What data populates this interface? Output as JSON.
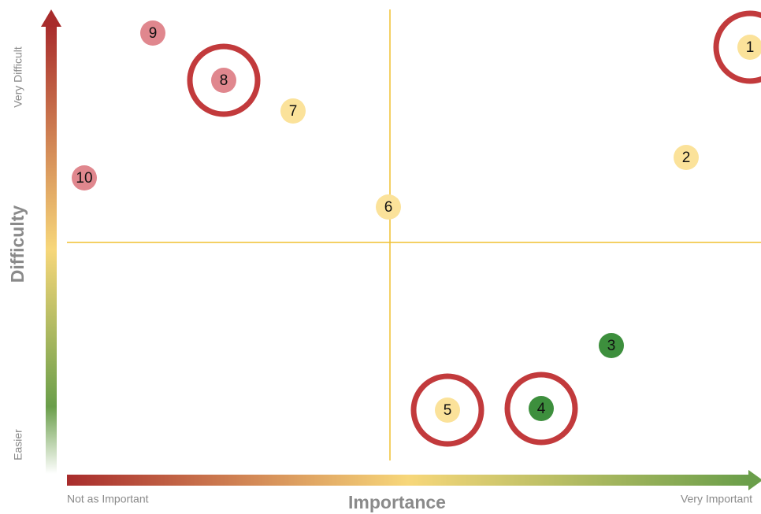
{
  "axes": {
    "y_top": "Very Difficult",
    "y_bottom": "Easier",
    "y_title": "Difficulty",
    "x_left": "Not as Important",
    "x_title": "Importance",
    "x_right": "Very Important"
  },
  "nodes": [
    {
      "label": "1",
      "color": "#fbe29a",
      "circled": true
    },
    {
      "label": "2",
      "color": "#fbe29a",
      "circled": false
    },
    {
      "label": "3",
      "color": "#3d8f3d",
      "circled": false
    },
    {
      "label": "4",
      "color": "#3d8f3d",
      "circled": true
    },
    {
      "label": "5",
      "color": "#fbe29a",
      "circled": true
    },
    {
      "label": "6",
      "color": "#fbe29a",
      "circled": false
    },
    {
      "label": "7",
      "color": "#fbe29a",
      "circled": false
    },
    {
      "label": "8",
      "color": "#e0878e",
      "circled": true
    },
    {
      "label": "9",
      "color": "#e0878e",
      "circled": false
    },
    {
      "label": "10",
      "color": "#e0878e",
      "circled": false
    }
  ]
}
